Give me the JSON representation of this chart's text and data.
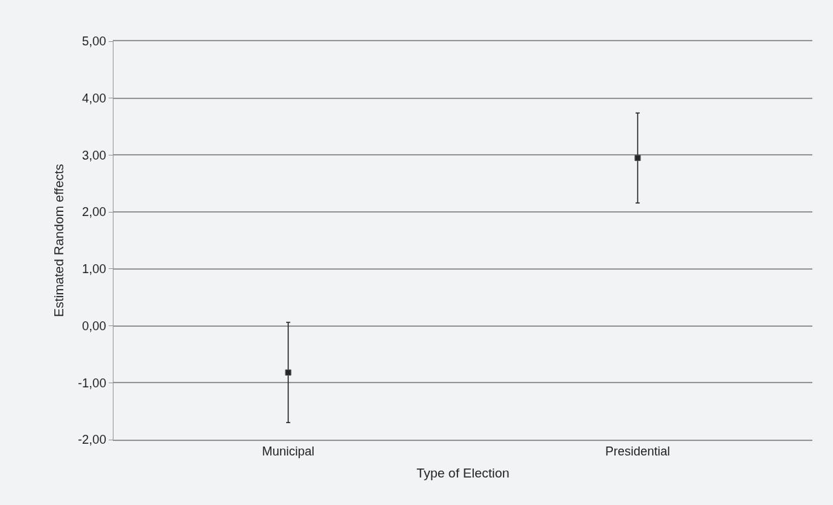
{
  "chart_data": {
    "type": "scatter",
    "xlabel": "Type of Election",
    "ylabel": "Estimated Random effects",
    "categories": [
      "Municipal",
      "Presidential"
    ],
    "series": [
      {
        "color": "#262626",
        "values": [
          -0.82,
          2.95
        ],
        "errors": [
          0.88,
          0.79
        ]
      }
    ],
    "marker": "square",
    "grid": "y",
    "ylim": [
      -2,
      5
    ],
    "yticks": [
      {
        "value": -2,
        "label": "-2,00"
      },
      {
        "value": -1,
        "label": "-1,00"
      },
      {
        "value": 0,
        "label": "0,00"
      },
      {
        "value": 1,
        "label": "1,00"
      },
      {
        "value": 2,
        "label": "2,00"
      },
      {
        "value": 3,
        "label": "3,00"
      },
      {
        "value": 4,
        "label": "4,00"
      },
      {
        "value": 5,
        "label": "5,00"
      }
    ]
  }
}
